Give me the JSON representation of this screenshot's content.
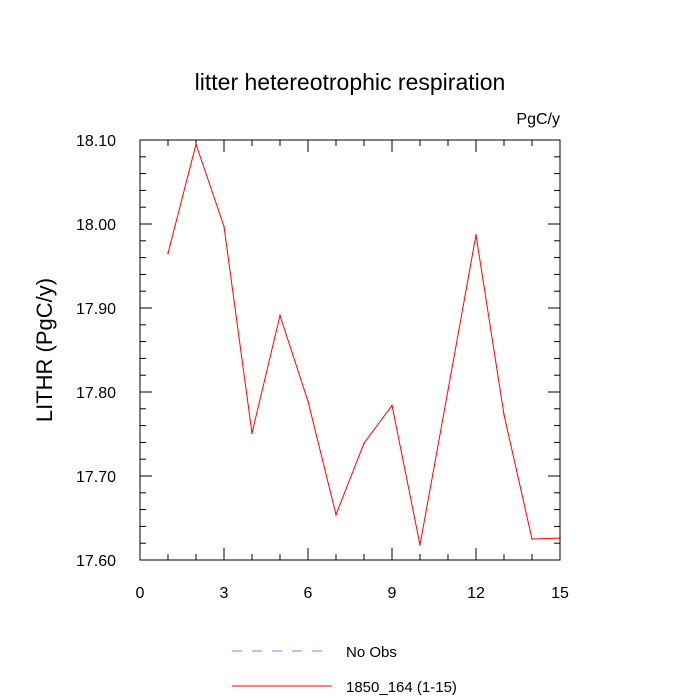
{
  "chart_data": {
    "type": "line",
    "title": "litter hetereotrophic respiration",
    "units_label": "PgC/y",
    "xlabel": "",
    "ylabel": "LITHR  (PgC/y)",
    "xlim": [
      0,
      15
    ],
    "ylim": [
      17.6,
      18.1
    ],
    "x_ticks": [
      0,
      3,
      6,
      9,
      12,
      15
    ],
    "y_ticks": [
      17.6,
      17.7,
      17.8,
      17.9,
      18.0,
      18.1
    ],
    "x_tick_labels": [
      "0",
      "3",
      "6",
      "9",
      "12",
      "15"
    ],
    "y_tick_labels": [
      "17.60",
      "17.70",
      "17.80",
      "17.90",
      "18.00",
      "18.10"
    ],
    "grid": false,
    "legend_position": "bottom",
    "series": [
      {
        "name": "No Obs",
        "color": "#8080ff",
        "dash": true,
        "x": [],
        "values": []
      },
      {
        "name": "1850_164 (1-15)",
        "color": "#ff0000",
        "dash": false,
        "x": [
          1,
          2,
          3,
          4,
          5,
          6,
          7,
          8,
          9,
          10,
          11,
          12,
          13,
          14,
          15
        ],
        "values": [
          17.965,
          18.095,
          17.997,
          17.751,
          17.891,
          17.789,
          17.654,
          17.739,
          17.784,
          17.618,
          17.802,
          17.987,
          17.773,
          17.625,
          17.626
        ]
      }
    ]
  }
}
